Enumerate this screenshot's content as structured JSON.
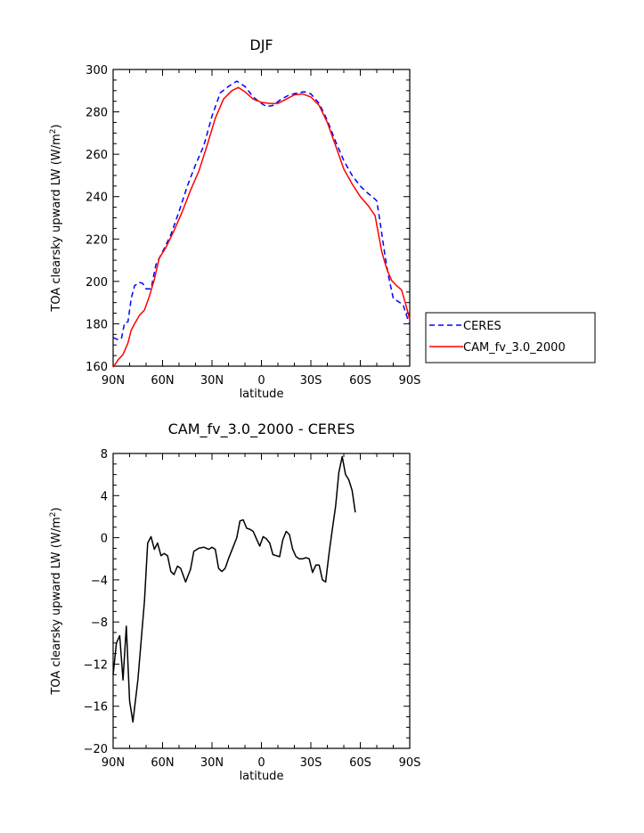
{
  "chart_data": [
    {
      "type": "line",
      "title": "DJF",
      "xlabel": "latitude",
      "ylabel": "TOA clearsky upward LW (W/m²)",
      "ylim": [
        160,
        300
      ],
      "y_ticks": [
        160,
        180,
        200,
        220,
        240,
        260,
        280,
        300
      ],
      "x_ticks": [
        {
          "value": -90,
          "label": "90N"
        },
        {
          "value": -60,
          "label": "60N"
        },
        {
          "value": -30,
          "label": "30N"
        },
        {
          "value": 0,
          "label": "0"
        },
        {
          "value": 30,
          "label": "30S"
        },
        {
          "value": 60,
          "label": "60S"
        },
        {
          "value": 90,
          "label": "90S"
        }
      ],
      "xlim": [
        -90,
        90
      ],
      "legend_position": "right",
      "series": [
        {
          "name": "CERES",
          "color": "#0000ff",
          "dash": true,
          "points": [
            [
              -90,
              173.5
            ],
            [
              -87,
              172.5
            ],
            [
              -85,
              173
            ],
            [
              -83,
              180.5
            ],
            [
              -81,
              181
            ],
            [
              -79,
              192
            ],
            [
              -77,
              198
            ],
            [
              -74,
              199.5
            ],
            [
              -72,
              199
            ],
            [
              -70,
              196.5
            ],
            [
              -67,
              196.5
            ],
            [
              -64,
              208
            ],
            [
              -60,
              214
            ],
            [
              -55,
              222
            ],
            [
              -50,
              233
            ],
            [
              -45,
              245
            ],
            [
              -40,
              255
            ],
            [
              -35,
              264
            ],
            [
              -30,
              278
            ],
            [
              -25,
              289
            ],
            [
              -20,
              292
            ],
            [
              -15,
              294.5
            ],
            [
              -10,
              292
            ],
            [
              -5,
              287
            ],
            [
              0,
              284
            ],
            [
              3,
              282.5
            ],
            [
              7,
              283
            ],
            [
              12,
              286
            ],
            [
              17,
              288
            ],
            [
              22,
              289
            ],
            [
              26,
              289.5
            ],
            [
              30,
              288.5
            ],
            [
              35,
              284
            ],
            [
              40,
              276
            ],
            [
              45,
              266
            ],
            [
              50,
              257
            ],
            [
              55,
              250
            ],
            [
              60,
              245
            ],
            [
              64,
              242
            ],
            [
              68,
              239.5
            ],
            [
              70,
              238
            ],
            [
              72,
              228
            ],
            [
              75,
              212
            ],
            [
              77,
              203
            ],
            [
              80,
              192
            ],
            [
              83,
              190.5
            ],
            [
              86,
              189
            ],
            [
              88,
              184
            ],
            [
              90,
              180
            ]
          ]
        },
        {
          "name": "CAM_fv_3.0_2000",
          "color": "#ff0000",
          "dash": false,
          "points": [
            [
              -90,
              159.5
            ],
            [
              -87,
              163
            ],
            [
              -84,
              165.5
            ],
            [
              -81,
              171
            ],
            [
              -79,
              177
            ],
            [
              -77,
              180
            ],
            [
              -74,
              184
            ],
            [
              -71,
              186.5
            ],
            [
              -68,
              193
            ],
            [
              -65,
              201
            ],
            [
              -62,
              211
            ],
            [
              -58,
              216
            ],
            [
              -53,
              224
            ],
            [
              -48,
              233
            ],
            [
              -43,
              243
            ],
            [
              -38,
              252
            ],
            [
              -33,
              264
            ],
            [
              -28,
              277
            ],
            [
              -23,
              286
            ],
            [
              -18,
              290
            ],
            [
              -14,
              291.5
            ],
            [
              -10,
              289.5
            ],
            [
              -5,
              286
            ],
            [
              0,
              284.5
            ],
            [
              5,
              284
            ],
            [
              10,
              284
            ],
            [
              15,
              286
            ],
            [
              20,
              288
            ],
            [
              25,
              288.5
            ],
            [
              30,
              287
            ],
            [
              35,
              283
            ],
            [
              40,
              275
            ],
            [
              45,
              264
            ],
            [
              50,
              253
            ],
            [
              55,
              246
            ],
            [
              60,
              240
            ],
            [
              65,
              235.5
            ],
            [
              69,
              231
            ],
            [
              73,
              214
            ],
            [
              76,
              206
            ],
            [
              79,
              200.5
            ],
            [
              82,
              198
            ],
            [
              85,
              196
            ],
            [
              88,
              188
            ],
            [
              90,
              182
            ]
          ]
        }
      ]
    },
    {
      "type": "line",
      "title": "CAM_fv_3.0_2000 - CERES",
      "xlabel": "latitude",
      "ylabel": "TOA clearsky upward LW (W/m²)",
      "ylim": [
        -20,
        8
      ],
      "y_ticks": [
        -20,
        -16,
        -12,
        -8,
        -4,
        0,
        4,
        8
      ],
      "y_tick_labels": [
        "−20",
        "−16",
        "−12",
        "−8",
        "−4",
        "0",
        "4",
        "8"
      ],
      "x_ticks": [
        {
          "value": -90,
          "label": "90N"
        },
        {
          "value": -60,
          "label": "60N"
        },
        {
          "value": -30,
          "label": "30N"
        },
        {
          "value": 0,
          "label": "0"
        },
        {
          "value": 30,
          "label": "30S"
        },
        {
          "value": 60,
          "label": "60S"
        },
        {
          "value": 90,
          "label": "90S"
        }
      ],
      "xlim": [
        -90,
        90
      ],
      "series": [
        {
          "name": "",
          "color": "#000000",
          "dash": false,
          "points": [
            [
              -90,
              -13
            ],
            [
              -88,
              -10
            ],
            [
              -86,
              -9.3
            ],
            [
              -84,
              -13.5
            ],
            [
              -82,
              -8.4
            ],
            [
              -80,
              -15.5
            ],
            [
              -78,
              -17.5
            ],
            [
              -75,
              -13.5
            ],
            [
              -71,
              -6
            ],
            [
              -69,
              -0.5
            ],
            [
              -67,
              0.1
            ],
            [
              -65,
              -1.1
            ],
            [
              -63,
              -0.5
            ],
            [
              -61,
              -1.7
            ],
            [
              -59,
              -1.5
            ],
            [
              -57,
              -1.7
            ],
            [
              -55,
              -3.2
            ],
            [
              -53,
              -3.5
            ],
            [
              -51,
              -2.7
            ],
            [
              -49,
              -2.9
            ],
            [
              -46,
              -4.2
            ],
            [
              -43,
              -3
            ],
            [
              -41,
              -1.3
            ],
            [
              -38,
              -1
            ],
            [
              -35,
              -0.9
            ],
            [
              -32,
              -1.1
            ],
            [
              -30,
              -0.9
            ],
            [
              -28,
              -1.1
            ],
            [
              -26,
              -2.9
            ],
            [
              -24,
              -3.2
            ],
            [
              -22,
              -2.9
            ],
            [
              -20,
              -2
            ],
            [
              -18,
              -1.2
            ],
            [
              -15,
              0
            ],
            [
              -13,
              1.6
            ],
            [
              -11,
              1.7
            ],
            [
              -9,
              0.9
            ],
            [
              -7,
              0.8
            ],
            [
              -5,
              0.6
            ],
            [
              -3,
              -0.1
            ],
            [
              -1,
              -0.8
            ],
            [
              1,
              0.1
            ],
            [
              3,
              -0.1
            ],
            [
              5,
              -0.5
            ],
            [
              7,
              -1.6
            ],
            [
              9,
              -1.7
            ],
            [
              11,
              -1.8
            ],
            [
              13,
              -0.2
            ],
            [
              15,
              0.6
            ],
            [
              17,
              0.3
            ],
            [
              19,
              -1.1
            ],
            [
              21,
              -1.8
            ],
            [
              23,
              -2
            ],
            [
              25,
              -2
            ],
            [
              27,
              -1.9
            ],
            [
              29,
              -2
            ],
            [
              31,
              -3.3
            ],
            [
              33,
              -2.6
            ],
            [
              35,
              -2.6
            ],
            [
              37,
              -4
            ],
            [
              39,
              -4.2
            ],
            [
              41,
              -1.5
            ],
            [
              43,
              0.8
            ],
            [
              45,
              3
            ],
            [
              47,
              6.2
            ],
            [
              49,
              7.7
            ],
            [
              51,
              6
            ],
            [
              53,
              5.5
            ],
            [
              55,
              4.5
            ],
            [
              57,
              2.4
            ]
          ]
        }
      ]
    }
  ]
}
